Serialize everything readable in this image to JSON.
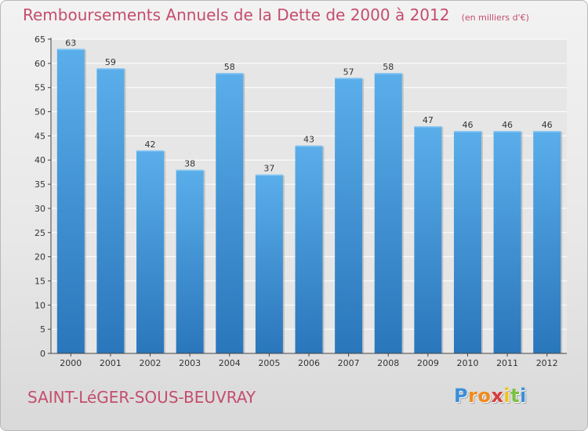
{
  "chart_data": {
    "type": "bar",
    "title": "Remboursements Annuels de la Dette de 2000 à 2012",
    "unit": "(en milliers d'€)",
    "categories": [
      "2000",
      "2001",
      "2002",
      "2003",
      "2004",
      "2005",
      "2006",
      "2007",
      "2008",
      "2009",
      "2010",
      "2011",
      "2012"
    ],
    "values": [
      63,
      59,
      42,
      38,
      58,
      37,
      43,
      57,
      58,
      47,
      46,
      46,
      46
    ],
    "data_labels": [
      "63",
      "59",
      "42",
      "38",
      "58",
      "37",
      "43",
      "57",
      "58",
      "47",
      "46",
      "46",
      "46"
    ],
    "ylim": [
      0,
      65
    ],
    "yticks": [
      0,
      5,
      10,
      15,
      20,
      25,
      30,
      35,
      40,
      45,
      50,
      55,
      60,
      65
    ],
    "ytick_labels": [
      "0",
      "5",
      "10",
      "15",
      "20",
      "25",
      "30",
      "35",
      "40",
      "45",
      "50",
      "55",
      "60",
      "65"
    ],
    "grid": true,
    "bar_color": "#3d8fd6",
    "bar_color_light": "#5aaeea",
    "bar_color_dark": "#2a76bb"
  },
  "footer": {
    "commune": "SAINT-LéGER-SOUS-BEUVRAY",
    "logo_letters": [
      "P",
      "r",
      "o",
      "x",
      "i",
      "t",
      "i"
    ],
    "logo_colors": [
      "#3a8fd8",
      "#f28a1a",
      "#f28a1a",
      "#d93b3b",
      "#f2c21a",
      "#7ac142",
      "#3a8fd8"
    ]
  },
  "colors": {
    "title": "#c44d6e",
    "grid": "#ffffff",
    "axis": "#444444"
  }
}
